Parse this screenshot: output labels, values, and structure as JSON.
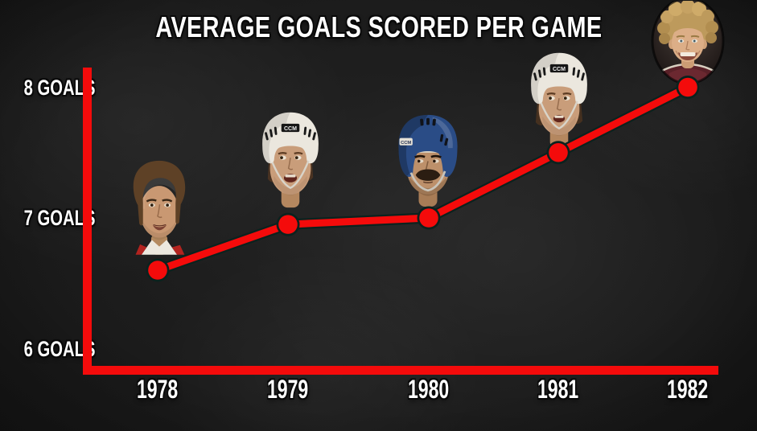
{
  "title": "AVERAGE GOALS SCORED PER GAME",
  "colors": {
    "background": "#161616",
    "accent": "#f40b0b",
    "label_text": "#ffffff",
    "line_outline": "#0b221e"
  },
  "chart_data": {
    "type": "line",
    "title": "AVERAGE GOALS SCORED PER GAME",
    "categories": [
      "1978",
      "1979",
      "1980",
      "1981",
      "1982"
    ],
    "values": [
      6.6,
      6.95,
      7.0,
      7.5,
      8.0
    ],
    "series_name": "Average goals scored per game",
    "y_tick_labels": [
      "8 GOALS",
      "7 GOALS",
      "6 GOALS"
    ],
    "y_tick_values": [
      8,
      7,
      6
    ],
    "ylim": [
      5.8,
      8.3
    ],
    "xlabel": "",
    "ylabel": "",
    "grid": false,
    "legend": false,
    "marker": "circle",
    "line_color": "#f40b0b"
  },
  "players": [
    {
      "year": "1978",
      "icon": "player-face-dark-hair-no-helmet-icon"
    },
    {
      "year": "1979",
      "icon": "player-face-white-ccm-helmet-icon"
    },
    {
      "year": "1980",
      "icon": "player-face-blue-helmet-mustache-icon"
    },
    {
      "year": "1981",
      "icon": "player-face-white-ccm-helmet-icon"
    },
    {
      "year": "1982",
      "icon": "player-face-curly-blond-hair-icon"
    }
  ]
}
